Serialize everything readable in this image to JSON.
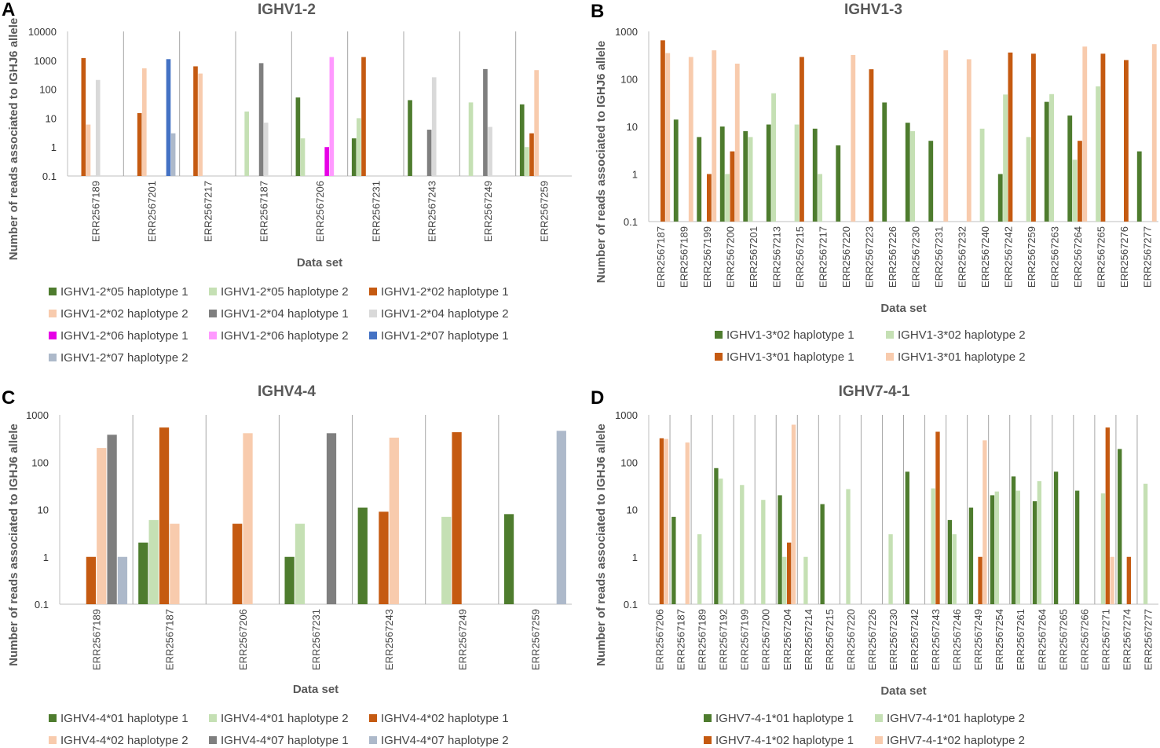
{
  "colors": {
    "IGHV1-2*05 haplotype 1": "#4e7c2e",
    "IGHV1-2*05 haplotype 2": "#c5e0b4",
    "IGHV1-2*02 haplotype 1": "#c55a11",
    "IGHV1-2*02 haplotype 2": "#f8cbad",
    "IGHV1-2*04 haplotype 1": "#7f7f7f",
    "IGHV1-2*04 haplotype 2": "#d9d9d9",
    "IGHV1-2*06 haplotype 1": "#e600e6",
    "IGHV1-2*06 haplotype 2": "#ff99ff",
    "IGHV1-2*07 haplotype 1": "#4472c4",
    "IGHV1-2*07 haplotype 2": "#adb9ca"
  },
  "chart_data": [
    {
      "id": "A",
      "panel_letter": "A",
      "type": "bar",
      "title": "IGHV1-2",
      "xlabel": "Data set",
      "ylabel": "Number of reads associated to IGHJ6 allele",
      "yscale": "log",
      "ylim": [
        0.1,
        10000
      ],
      "yticks": [
        "0.1",
        "1",
        "10",
        "100",
        "1000",
        "10000"
      ],
      "categories": [
        "ERR2567189",
        "ERR2567201",
        "ERR2567217",
        "ERR2567187",
        "ERR2567206",
        "ERR2567231",
        "ERR2567243",
        "ERR2567249",
        "ERR2567259"
      ],
      "series": [
        {
          "name": "IGHV1-2*05 haplotype 1",
          "color": "#4e7c2e",
          "values": [
            null,
            null,
            null,
            null,
            52,
            2,
            42,
            null,
            30
          ]
        },
        {
          "name": "IGHV1-2*05 haplotype 2",
          "color": "#c5e0b4",
          "values": [
            null,
            null,
            null,
            17,
            2,
            10,
            null,
            35,
            1
          ]
        },
        {
          "name": "IGHV1-2*02 haplotype 1",
          "color": "#c55a11",
          "values": [
            1200,
            15,
            620,
            null,
            null,
            1300,
            null,
            null,
            3
          ]
        },
        {
          "name": "IGHV1-2*02 haplotype 2",
          "color": "#f8cbad",
          "values": [
            6,
            530,
            350,
            null,
            null,
            null,
            null,
            null,
            460
          ]
        },
        {
          "name": "IGHV1-2*04 haplotype 1",
          "color": "#7f7f7f",
          "values": [
            null,
            null,
            null,
            800,
            null,
            null,
            4,
            500,
            null
          ]
        },
        {
          "name": "IGHV1-2*04 haplotype 2",
          "color": "#d9d9d9",
          "values": [
            210,
            null,
            null,
            7,
            null,
            null,
            260,
            5,
            null
          ]
        },
        {
          "name": "IGHV1-2*06 haplotype 1",
          "color": "#e600e6",
          "values": [
            null,
            null,
            null,
            null,
            1,
            null,
            null,
            null,
            null
          ]
        },
        {
          "name": "IGHV1-2*06 haplotype 2",
          "color": "#ff99ff",
          "values": [
            null,
            null,
            null,
            null,
            1300,
            null,
            null,
            null,
            null
          ]
        },
        {
          "name": "IGHV1-2*07 haplotype 1",
          "color": "#4472c4",
          "values": [
            null,
            1100,
            null,
            null,
            null,
            null,
            null,
            null,
            null
          ]
        },
        {
          "name": "IGHV1-2*07 haplotype 2",
          "color": "#adb9ca",
          "values": [
            null,
            3,
            null,
            null,
            null,
            null,
            null,
            null,
            null
          ]
        }
      ],
      "separators": true,
      "legend_position": "bottom"
    },
    {
      "id": "B",
      "panel_letter": "B",
      "type": "bar",
      "title": "IGHV1-3",
      "xlabel": "Data set",
      "ylabel": "Number of reads associated to IGHJ6 allele",
      "yscale": "log",
      "ylim": [
        0.1,
        1000
      ],
      "yticks": [
        "0.1",
        "1",
        "10",
        "100",
        "1000"
      ],
      "categories": [
        "ERR2567187",
        "ERR2567189",
        "ERR2567199",
        "ERR2567200",
        "ERR2567201",
        "ERR2567213",
        "ERR2567215",
        "ERR2567217",
        "ERR2567220",
        "ERR2567223",
        "ERR2567226",
        "ERR2567230",
        "ERR2567231",
        "ERR2567232",
        "ERR2567240",
        "ERR2567242",
        "ERR2567259",
        "ERR2567263",
        "ERR2567264",
        "ERR2567265",
        "ERR2567276",
        "ERR2567277"
      ],
      "series": [
        {
          "name": "IGHV1-3*02 haplotype 1",
          "color": "#4e7c2e",
          "values": [
            null,
            14,
            6,
            10,
            8,
            11,
            null,
            9,
            4,
            null,
            32,
            12,
            5,
            null,
            null,
            1,
            null,
            33,
            17,
            null,
            null,
            3
          ]
        },
        {
          "name": "IGHV1-3*02 haplotype 2",
          "color": "#c5e0b4",
          "values": [
            null,
            null,
            null,
            1,
            6,
            50,
            11,
            1,
            null,
            null,
            null,
            8,
            null,
            null,
            9,
            47,
            6,
            48,
            2,
            70,
            null,
            null
          ]
        },
        {
          "name": "IGHV1-3*01 haplotype 1",
          "color": "#c55a11",
          "values": [
            650,
            null,
            1,
            3,
            null,
            null,
            290,
            null,
            null,
            160,
            null,
            null,
            null,
            null,
            null,
            360,
            340,
            null,
            5,
            340,
            250,
            null
          ]
        },
        {
          "name": "IGHV1-3*01 haplotype 2",
          "color": "#f8cbad",
          "values": [
            350,
            290,
            400,
            210,
            null,
            null,
            null,
            null,
            320,
            null,
            null,
            null,
            400,
            260,
            null,
            null,
            null,
            null,
            480,
            null,
            null,
            540
          ]
        }
      ],
      "separators": false,
      "legend_position": "bottom"
    },
    {
      "id": "C",
      "panel_letter": "C",
      "type": "bar",
      "title": "IGHV4-4",
      "xlabel": "Data set",
      "ylabel": "Number of reads associated to IGHJ6 allele",
      "yscale": "log",
      "ylim": [
        0.1,
        1000
      ],
      "yticks": [
        "0.1",
        "1",
        "10",
        "100",
        "1000"
      ],
      "categories": [
        "ERR2567189",
        "ERR2567187",
        "ERR2567206",
        "ERR2567231",
        "ERR2567243",
        "ERR2567249",
        "ERR2567259"
      ],
      "series": [
        {
          "name": "IGHV4-4*01 haplotype 1",
          "color": "#4e7c2e",
          "values": [
            null,
            2,
            null,
            1,
            11,
            null,
            8
          ]
        },
        {
          "name": "IGHV4-4*01 haplotype 2",
          "color": "#c5e0b4",
          "values": [
            null,
            6,
            null,
            5,
            null,
            7,
            null
          ]
        },
        {
          "name": "IGHV4-4*02 haplotype 1",
          "color": "#c55a11",
          "values": [
            1,
            540,
            5,
            null,
            9,
            430,
            null
          ]
        },
        {
          "name": "IGHV4-4*02 haplotype 2",
          "color": "#f8cbad",
          "values": [
            200,
            5,
            410,
            null,
            330,
            null,
            null
          ]
        },
        {
          "name": "IGHV4-4*07 haplotype 1",
          "color": "#7f7f7f",
          "values": [
            380,
            null,
            null,
            410,
            null,
            null,
            null
          ]
        },
        {
          "name": "IGHV4-4*07 haplotype 2",
          "color": "#adb9ca",
          "values": [
            1,
            null,
            null,
            null,
            null,
            null,
            460
          ]
        }
      ],
      "separators": true,
      "legend_position": "bottom"
    },
    {
      "id": "D",
      "panel_letter": "D",
      "type": "bar",
      "title": "IGHV7-4-1",
      "xlabel": "Data set",
      "ylabel": "Number of reads associated to IGHJ6 allele",
      "yscale": "log",
      "ylim": [
        0.1,
        1000
      ],
      "yticks": [
        "0.1",
        "1",
        "10",
        "100",
        "1000"
      ],
      "categories": [
        "ERR2567206",
        "ERR2567187",
        "ERR2567189",
        "ERR2567192",
        "ERR2567199",
        "ERR2567200",
        "ERR2567204",
        "ERR2567214",
        "ERR2567215",
        "ERR2567220",
        "ERR2567226",
        "ERR2567230",
        "ERR2567242",
        "ERR2567243",
        "ERR2567246",
        "ERR2567249",
        "ERR2567254",
        "ERR2567261",
        "ERR2567264",
        "ERR2567265",
        "ERR2567266",
        "ERR2567271",
        "ERR2567274",
        "ERR2567277"
      ],
      "series": [
        {
          "name": "IGHV7-4-1*01 haplotype 1",
          "color": "#4e7c2e",
          "values": [
            null,
            7,
            null,
            75,
            null,
            null,
            20,
            null,
            13,
            null,
            null,
            null,
            63,
            null,
            6,
            11,
            20,
            50,
            15,
            63,
            25,
            null,
            190,
            null
          ]
        },
        {
          "name": "IGHV7-4-1*01 haplotype 2",
          "color": "#c5e0b4",
          "values": [
            null,
            null,
            3,
            45,
            33,
            16,
            1,
            1,
            null,
            27,
            null,
            3,
            null,
            28,
            3,
            null,
            24,
            25,
            40,
            null,
            null,
            22,
            null,
            35
          ]
        },
        {
          "name": "IGHV7-4-1*02 haplotype 1",
          "color": "#c55a11",
          "values": [
            320,
            null,
            null,
            null,
            null,
            null,
            2,
            null,
            null,
            null,
            null,
            null,
            null,
            440,
            null,
            1,
            null,
            null,
            null,
            null,
            null,
            540,
            1,
            null
          ]
        },
        {
          "name": "IGHV7-4-1*02 haplotype 2",
          "color": "#f8cbad",
          "values": [
            310,
            260,
            null,
            null,
            null,
            null,
            620,
            null,
            null,
            null,
            null,
            null,
            null,
            null,
            null,
            290,
            null,
            null,
            null,
            null,
            null,
            1,
            null,
            null
          ]
        }
      ],
      "separators": true,
      "legend_position": "bottom"
    }
  ]
}
